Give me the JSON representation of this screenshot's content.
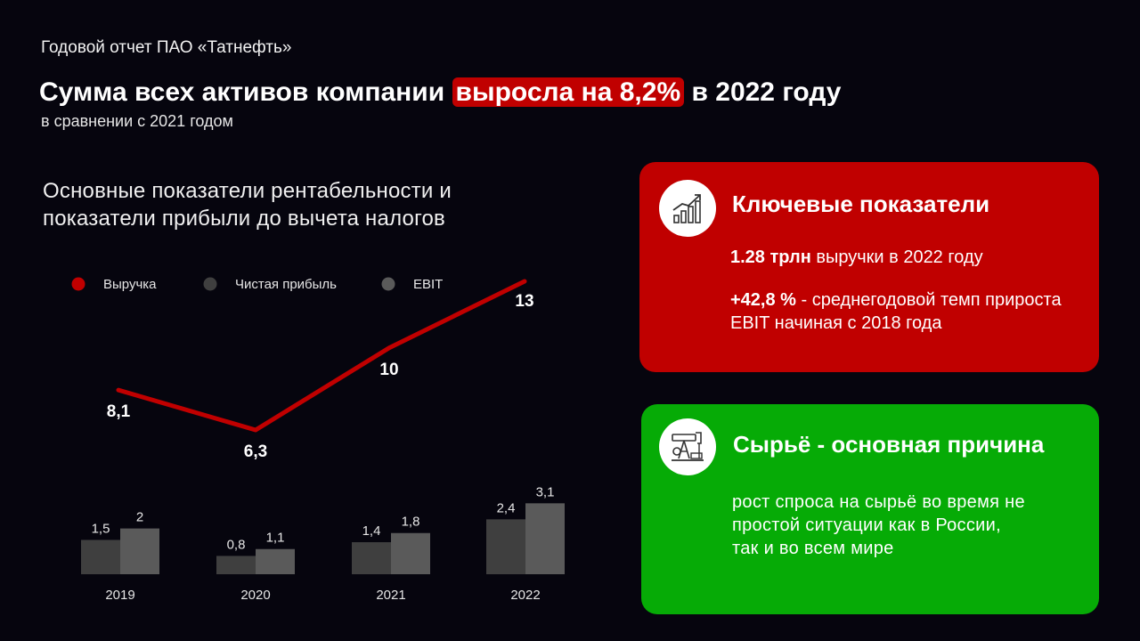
{
  "header": {
    "report_label": "Годовой отчет ПАО «Татнефть»",
    "headline_before": "Сумма всех активов компании ",
    "headline_highlight": "выросла на 8,2%",
    "headline_after": " в 2022 году",
    "subhead": "в сравнении с 2021 годом"
  },
  "chart_section": {
    "title_line1": "Основные показатели рентабельности и",
    "title_line2": "показатели прибыли до вычета налогов"
  },
  "chart_data": {
    "type": "line+bar",
    "title": "Основные показатели рентабельности и показатели прибыли до вычета налогов",
    "categories": [
      "2019",
      "2020",
      "2021",
      "2022"
    ],
    "series": [
      {
        "name": "Выручка",
        "type": "line",
        "values": [
          8.1,
          6.3,
          10,
          13
        ],
        "labels": [
          "8,1",
          "6,3",
          "10",
          "13"
        ],
        "color": "#c00000"
      },
      {
        "name": "Чистая прибыль",
        "type": "bar",
        "values": [
          1.5,
          0.8,
          1.4,
          2.4
        ],
        "labels": [
          "1,5",
          "0,8",
          "1,4",
          "2,4"
        ],
        "color": "#3f3f3f"
      },
      {
        "name": "EBIT",
        "type": "bar",
        "values": [
          2,
          1.1,
          1.8,
          3.1
        ],
        "labels": [
          "2",
          "1,1",
          "1,8",
          "3,1"
        ],
        "color": "#5a5a5a"
      }
    ],
    "legend_position": "top",
    "grid": false,
    "axes_visible": false
  },
  "cards": {
    "key": {
      "icon": "growth-chart-icon",
      "title": "Ключевые показатели",
      "stat1_bold": "1.28 трлн",
      "stat1_rest": " выручки в 2022 году",
      "stat2_bold": "+42,8 %",
      "stat2_rest": " - среднегодовой темп прироста EBIT начиная с 2018 года",
      "color": "#c00000"
    },
    "cause": {
      "icon": "oil-pump-icon",
      "title": "Сырьё - основная причина",
      "text": "рост спроса на сырьё во время не простой ситуации как в России, так и во всем мире",
      "color": "#06ab06"
    }
  }
}
